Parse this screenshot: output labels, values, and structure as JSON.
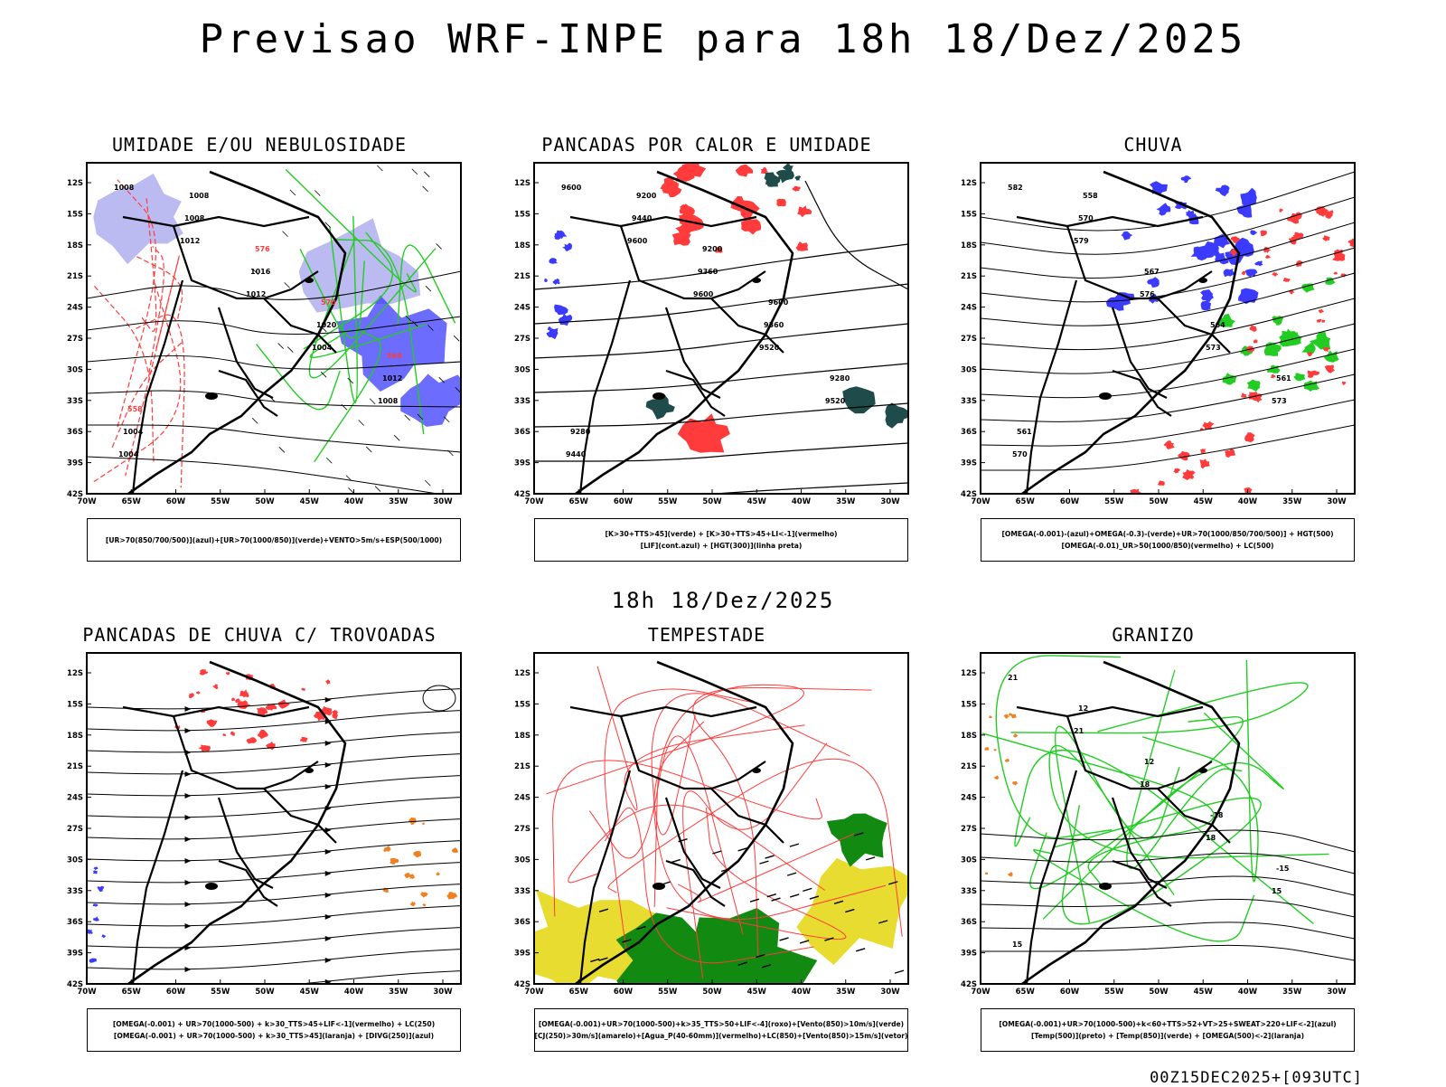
{
  "header": {
    "title": "Previsao WRF-INPE  para 18h 18/Dez/2025"
  },
  "mid": {
    "subtitle": "18h 18/Dez/2025"
  },
  "footer": {
    "run": "00Z15DEC2025+[093UTC]"
  },
  "colors": {
    "blue": "#3b3bff",
    "lavender": "#b4b4f0",
    "green": "#22cc22",
    "red": "#ff3b3b",
    "darkteal": "#1f4b4b",
    "orange": "#f08020",
    "yellow": "#e8dc30",
    "darkgreen": "#128a12"
  },
  "chart_data": [
    {
      "type": "map",
      "title": "UMIDADE E/OU NEBULOSIDADE",
      "xlabels": [
        "70W",
        "65W",
        "60W",
        "55W",
        "50W",
        "45W",
        "40W",
        "35W",
        "30W"
      ],
      "ylabels": [
        "12S",
        "15S",
        "18S",
        "21S",
        "24S",
        "27S",
        "30S",
        "33S",
        "36S",
        "39S",
        "42S"
      ],
      "lon_range": [
        -70,
        -28
      ],
      "lat_range": [
        -42,
        -10
      ],
      "annotations": [
        "1008",
        "1012",
        "1012",
        "1004",
        "1008",
        "1004",
        "1008",
        "1016",
        "1020",
        "1012",
        "1004",
        "1008",
        "576",
        "570",
        "564",
        "558"
      ],
      "legend": [
        "[UR>70(850/700/500)](azul)+[UR>70(1000/850)](verde)+VENTO>5m/s+ESP(500/1000)"
      ]
    },
    {
      "type": "map",
      "title": "PANCADAS POR CALOR E UMIDADE",
      "xlabels": [
        "70W",
        "65W",
        "60W",
        "55W",
        "50W",
        "45W",
        "40W",
        "35W",
        "30W"
      ],
      "ylabels": [
        "12S",
        "15S",
        "18S",
        "21S",
        "24S",
        "27S",
        "30S",
        "33S",
        "36S",
        "39S",
        "42S"
      ],
      "lon_range": [
        -70,
        -28
      ],
      "lat_range": [
        -42,
        -10
      ],
      "annotations": [
        "9600",
        "9600",
        "9600",
        "9520",
        "9520",
        "9440",
        "9440",
        "9360",
        "9360",
        "9280",
        "9280",
        "9200",
        "9200",
        "9600"
      ],
      "legend": [
        "[K>30+TTS>45](verde) + [K>30+TTS>45+LI<-1](vermelho)",
        "[LIF](cont.azul) + [HGT(300)](linha preta)"
      ]
    },
    {
      "type": "map",
      "title": "CHUVA",
      "xlabels": [
        "70W",
        "65W",
        "60W",
        "55W",
        "50W",
        "45W",
        "40W",
        "35W",
        "30W"
      ],
      "ylabels": [
        "12S",
        "15S",
        "18S",
        "21S",
        "24S",
        "27S",
        "30S",
        "33S",
        "36S",
        "39S",
        "42S"
      ],
      "lon_range": [
        -70,
        -28
      ],
      "lat_range": [
        -42,
        -10
      ],
      "annotations": [
        "582",
        "579",
        "576",
        "573",
        "573",
        "570",
        "570",
        "567",
        "564",
        "561",
        "561",
        "558"
      ],
      "legend": [
        "[OMEGA(-0.001)-(azul)+OMEGA(-0.3)-(verde)+UR>70(1000/850/700/500)] + HGT(500)",
        "[OMEGA(-0.01)_UR>50(1000/850)(vermelho) + LC(500)"
      ]
    },
    {
      "type": "map",
      "title": "PANCADAS DE CHUVA C/ TROVOADAS",
      "xlabels": [
        "70W",
        "65W",
        "60W",
        "55W",
        "50W",
        "45W",
        "40W",
        "35W",
        "30W"
      ],
      "ylabels": [
        "12S",
        "15S",
        "18S",
        "21S",
        "24S",
        "27S",
        "30S",
        "33S",
        "36S",
        "39S",
        "42S"
      ],
      "lon_range": [
        -70,
        -28
      ],
      "lat_range": [
        -42,
        -10
      ],
      "legend": [
        "[OMEGA(-0.001) + UR>70(1000-500) + k>30_TTS>45+LIF<-1](vermelho) + LC(250)",
        "[OMEGA(-0.001) + UR>70(1000-500) + k>30_TTS>45](laranja) + [DIVG(250)](azul)"
      ]
    },
    {
      "type": "map",
      "title": "TEMPESTADE",
      "xlabels": [
        "70W",
        "65W",
        "60W",
        "55W",
        "50W",
        "45W",
        "40W",
        "35W",
        "30W"
      ],
      "ylabels": [
        "12S",
        "15S",
        "18S",
        "21S",
        "24S",
        "27S",
        "30S",
        "33S",
        "36S",
        "39S",
        "42S"
      ],
      "lon_range": [
        -70,
        -28
      ],
      "lat_range": [
        -42,
        -10
      ],
      "legend": [
        "[OMEGA(-0.001)+UR>70(1000-500)+k>35_TTS>50+LIF<-4](roxo)+[Vento(850)>10m/s](verde)",
        "[CJ(250)>30m/s](amarelo)+[Agua_P(40-60mm)](vermelho)+LC(850)+[Vento(850)>15m/s](vetor)"
      ]
    },
    {
      "type": "map",
      "title": "GRANIZO",
      "xlabels": [
        "70W",
        "65W",
        "60W",
        "55W",
        "50W",
        "45W",
        "40W",
        "35W",
        "30W"
      ],
      "ylabels": [
        "12S",
        "15S",
        "18S",
        "21S",
        "24S",
        "27S",
        "30S",
        "33S",
        "36S",
        "39S",
        "42S"
      ],
      "lon_range": [
        -70,
        -28
      ],
      "lat_range": [
        -42,
        -10
      ],
      "annotations": [
        "21",
        "21",
        "18",
        "18",
        "15",
        "15",
        "12",
        "12",
        "-18",
        "-15"
      ],
      "legend": [
        "[OMEGA(-0.001)+UR>70(1000-500)+k<60+TTS>52+VT>25+SWEAT>220+LIF<-2](azul)",
        "[Temp(500)](preto) + [Temp(850)](verde) + [OMEGA(500)<-2](laranja)"
      ]
    }
  ]
}
